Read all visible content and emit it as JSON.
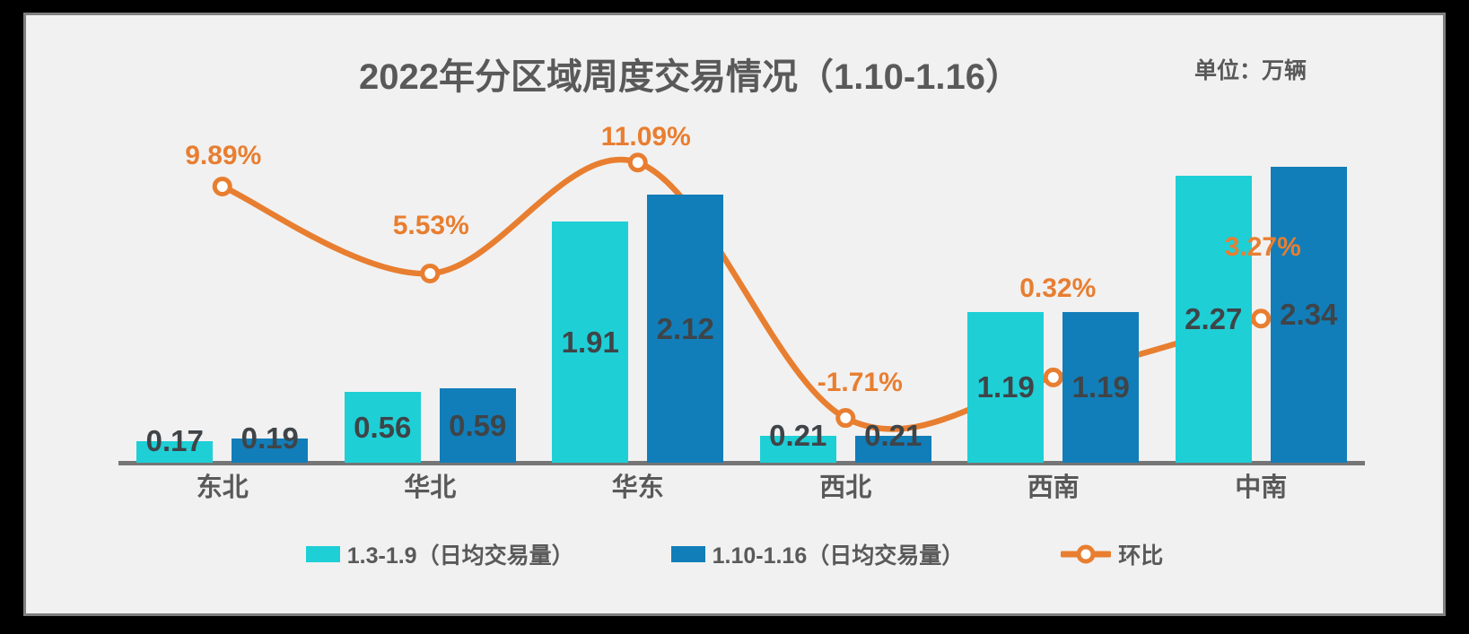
{
  "title": "2022年分区域周度交易情况（1.10-1.16）",
  "unit_label": "单位：万辆",
  "legend": {
    "items": [
      {
        "label": "1.3-1.9（日均交易量）",
        "color": "#1ECFD6",
        "type": "bar"
      },
      {
        "label": "1.10-1.16（日均交易量）",
        "color": "#117EB9",
        "type": "bar"
      },
      {
        "label": "环比",
        "color": "#E87E30",
        "type": "line"
      }
    ]
  },
  "chart_data": {
    "type": "bar",
    "subtype": "grouped bars with secondary-axis line (combo chart)",
    "title": "2022年分区域周度交易情况（1.10-1.16）",
    "unit": "万辆",
    "categories": [
      "东北",
      "华北",
      "华东",
      "西北",
      "西南",
      "中南"
    ],
    "series": [
      {
        "name": "1.3-1.9（日均交易量）",
        "type": "bar",
        "color": "#1ECFD6",
        "values": [
          0.17,
          0.56,
          1.91,
          0.21,
          1.19,
          2.27
        ],
        "labels": [
          "0.17",
          "0.56",
          "1.91",
          "0.21",
          "1.19",
          "2.27"
        ]
      },
      {
        "name": "1.10-1.16（日均交易量）",
        "type": "bar",
        "color": "#117EB9",
        "values": [
          0.19,
          0.59,
          2.12,
          0.21,
          1.19,
          2.34
        ],
        "labels": [
          "0.19",
          "0.59",
          "2.12",
          "0.21",
          "1.19",
          "2.34"
        ]
      },
      {
        "name": "环比",
        "type": "line",
        "color": "#E87E30",
        "marker": "hollow-circle",
        "values_pct": [
          9.89,
          5.53,
          11.09,
          -1.71,
          0.32,
          3.27
        ],
        "labels": [
          "9.89%",
          "5.53%",
          "11.09%",
          "-1.71%",
          "0.32%",
          "3.27%"
        ],
        "label_offsets": [
          [
            1,
            -34
          ],
          [
            1,
            -53
          ],
          [
            9,
            -28
          ],
          [
            16,
            -39
          ],
          [
            5,
            -99
          ],
          [
            2,
            -79
          ]
        ]
      }
    ],
    "value_labels_position": "center of bar (above bar when bar is too short)",
    "axis": {
      "x_visible_line": true,
      "y_gridlines": false,
      "y_ticks_visible": false
    },
    "legend_position": "bottom-center",
    "colors": {
      "bar1": "#1ECFD6",
      "bar2": "#117EB9",
      "line": "#E87E30",
      "text": "#595959",
      "value_text": "#3F4448",
      "background": "#F1F1F1",
      "axis_line": "#757575"
    }
  }
}
